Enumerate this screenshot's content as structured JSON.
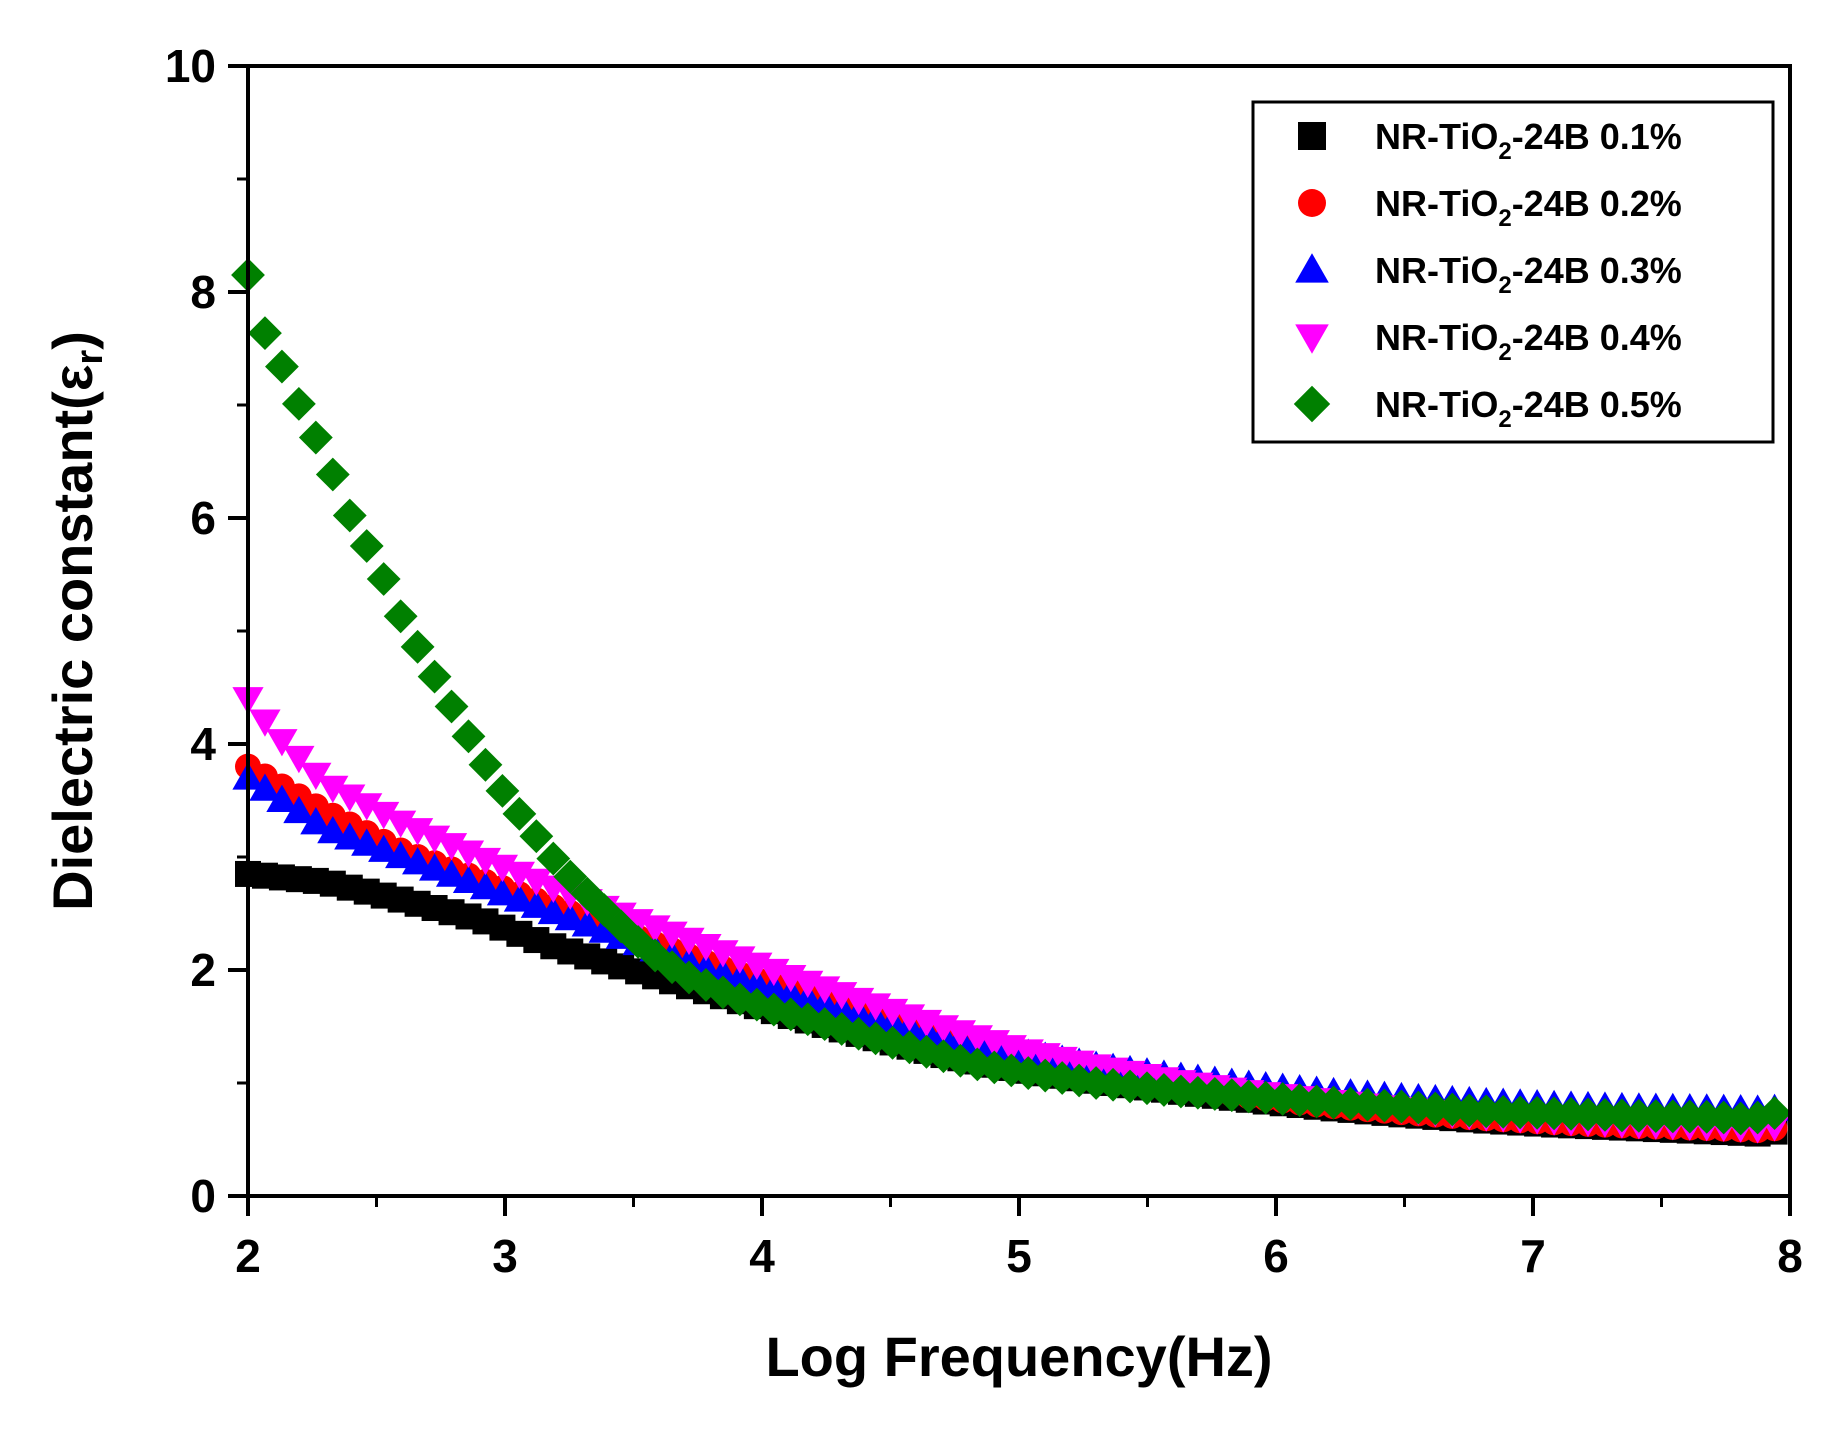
{
  "chart_data": {
    "type": "scatter",
    "title": "",
    "xlabel": "Log Frequency(Hz)",
    "ylabel": {
      "text": "Dielectric constant(",
      "symbol": "ε",
      "subscript": "r",
      "close": ")"
    },
    "xlim": [
      2,
      8
    ],
    "ylim": [
      0,
      10
    ],
    "xticks": [
      "2",
      "3",
      "4",
      "5",
      "6",
      "7",
      "8"
    ],
    "yticks": [
      "0",
      "2",
      "4",
      "6",
      "8",
      "10"
    ],
    "legend_position": "top-right",
    "series": [
      {
        "name": "NR-TiO2-24B 0.1%",
        "label": {
          "prefix": "NR-TiO",
          "sub": "2",
          "suffix": "-24B 0.1%"
        },
        "color": "#000000",
        "marker": "square",
        "x": [
          2.0,
          2.3,
          2.6,
          2.9,
          3.2,
          3.5,
          3.8,
          4.1,
          4.4,
          4.7,
          5.0,
          5.3,
          5.6,
          5.9,
          6.2,
          6.5,
          6.8,
          7.1,
          7.4,
          7.7,
          7.9,
          8.0
        ],
        "y": [
          2.85,
          2.78,
          2.62,
          2.45,
          2.2,
          2.0,
          1.8,
          1.6,
          1.42,
          1.25,
          1.12,
          1.02,
          0.93,
          0.85,
          0.78,
          0.72,
          0.67,
          0.63,
          0.6,
          0.57,
          0.55,
          0.6
        ]
      },
      {
        "name": "NR-TiO2-24B 0.2%",
        "label": {
          "prefix": "NR-TiO",
          "sub": "2",
          "suffix": "-24B 0.2%"
        },
        "color": "#ff0000",
        "marker": "circle",
        "x": [
          2.0,
          2.3,
          2.6,
          2.9,
          3.2,
          3.5,
          3.8,
          4.1,
          4.4,
          4.7,
          5.0,
          5.3,
          5.6,
          5.9,
          6.2,
          6.5,
          6.8,
          7.1,
          7.4,
          7.7,
          7.9,
          8.0
        ],
        "y": [
          3.8,
          3.4,
          3.05,
          2.8,
          2.55,
          2.3,
          2.05,
          1.82,
          1.6,
          1.4,
          1.22,
          1.08,
          0.97,
          0.88,
          0.8,
          0.74,
          0.69,
          0.65,
          0.62,
          0.6,
          0.58,
          0.63
        ]
      },
      {
        "name": "NR-TiO2-24B 0.3%",
        "label": {
          "prefix": "NR-TiO",
          "sub": "2",
          "suffix": "-24B 0.3%"
        },
        "color": "#0000ff",
        "marker": "triangle-up",
        "x": [
          2.0,
          2.3,
          2.6,
          2.9,
          3.2,
          3.5,
          3.8,
          4.1,
          4.4,
          4.7,
          5.0,
          5.3,
          5.6,
          5.9,
          6.2,
          6.5,
          6.8,
          7.1,
          7.4,
          7.7,
          7.9,
          8.0
        ],
        "y": [
          3.7,
          3.25,
          3.0,
          2.75,
          2.5,
          2.25,
          2.0,
          1.8,
          1.6,
          1.42,
          1.27,
          1.15,
          1.06,
          0.98,
          0.92,
          0.87,
          0.83,
          0.8,
          0.78,
          0.77,
          0.76,
          0.78
        ]
      },
      {
        "name": "NR-TiO2-24B 0.4%",
        "label": {
          "prefix": "NR-TiO",
          "sub": "2",
          "suffix": "-24B 0.4%"
        },
        "color": "#ff00ff",
        "marker": "triangle-down",
        "x": [
          2.0,
          2.1,
          2.3,
          2.6,
          2.9,
          3.2,
          3.5,
          3.8,
          4.1,
          4.4,
          4.7,
          5.0,
          5.3,
          5.6,
          5.9,
          6.2,
          6.5,
          6.8,
          7.1,
          7.4,
          7.7,
          7.9,
          8.0
        ],
        "y": [
          4.4,
          4.1,
          3.65,
          3.3,
          3.0,
          2.72,
          2.45,
          2.2,
          1.95,
          1.72,
          1.5,
          1.3,
          1.15,
          1.02,
          0.92,
          0.84,
          0.77,
          0.71,
          0.67,
          0.64,
          0.62,
          0.6,
          0.65
        ]
      },
      {
        "name": "NR-TiO2-24B 0.5%",
        "label": {
          "prefix": "NR-TiO",
          "sub": "2",
          "suffix": "-24B 0.5%"
        },
        "color": "#008000",
        "marker": "diamond",
        "x": [
          2.0,
          2.05,
          2.1,
          2.2,
          2.3,
          2.4,
          2.5,
          2.6,
          2.7,
          2.8,
          2.9,
          3.0,
          3.1,
          3.2,
          3.3,
          3.4,
          3.5,
          3.6,
          3.7,
          3.8,
          3.9,
          4.0,
          4.2,
          4.4,
          4.6,
          4.8,
          5.0,
          5.3,
          5.6,
          5.9,
          6.2,
          6.5,
          6.8,
          7.1,
          7.4,
          7.7,
          7.85,
          7.95,
          8.0
        ],
        "y": [
          8.15,
          7.7,
          7.5,
          7.0,
          6.55,
          6.0,
          5.6,
          5.1,
          4.7,
          4.3,
          3.9,
          3.55,
          3.25,
          2.95,
          2.72,
          2.5,
          2.28,
          2.1,
          1.95,
          1.85,
          1.75,
          1.68,
          1.55,
          1.42,
          1.3,
          1.18,
          1.1,
          1.0,
          0.93,
          0.88,
          0.83,
          0.79,
          0.75,
          0.73,
          0.71,
          0.7,
          0.68,
          0.74,
          0.78
        ]
      }
    ]
  }
}
